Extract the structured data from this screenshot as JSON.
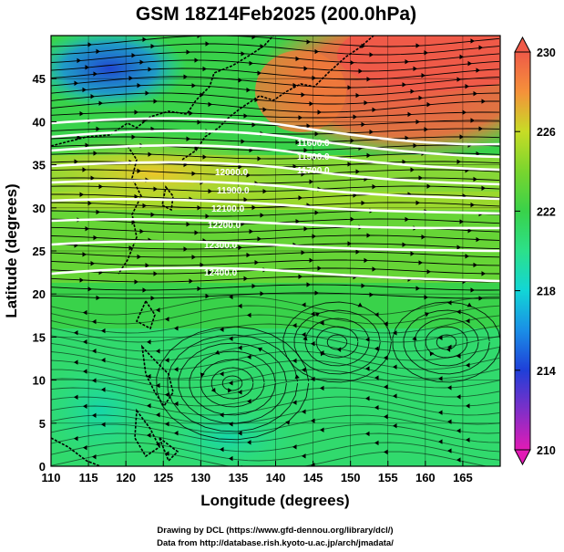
{
  "title": "GSM 18Z14Feb2025 (200.0hPa)",
  "xaxis": {
    "label": "Longitude (degrees)",
    "range": [
      110,
      170
    ],
    "ticks": [
      "110",
      "115",
      "120",
      "125",
      "130",
      "135",
      "140",
      "145",
      "150",
      "155",
      "160",
      "165"
    ]
  },
  "yaxis": {
    "label": "Latitude  (degrees)",
    "range": [
      0,
      50
    ],
    "ticks": [
      "0",
      "5",
      "10",
      "15",
      "20",
      "25",
      "30",
      "35",
      "40",
      "45"
    ]
  },
  "colorbar": {
    "range": [
      210,
      230
    ],
    "ticks": [
      "210",
      "214",
      "218",
      "222",
      "226",
      "230"
    ],
    "colors": [
      "#e21bb5",
      "#7f2fc8",
      "#1f3fd8",
      "#1a8ee6",
      "#12d6d6",
      "#2ce08a",
      "#39d24a",
      "#79d52e",
      "#c7dc26",
      "#f2c62a",
      "#f5913a",
      "#ef5a48"
    ]
  },
  "contour_labels": [
    "11600.0",
    "11500.0",
    "11700.0",
    "12000.0",
    "11900.0",
    "12100.0",
    "12200.0",
    "12300.0",
    "12400.0"
  ],
  "credits": {
    "line1": "Drawing by DCL (https://www.gfd-dennou.org/library/dcl/)",
    "line2": "Data from http://database.rish.kyoto-u.ac.jp/arch/jmadata/"
  }
}
